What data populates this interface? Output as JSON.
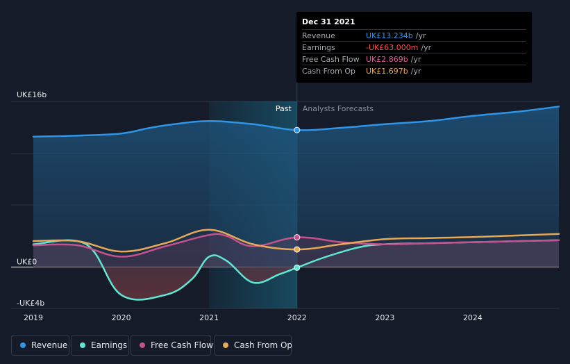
{
  "chart_data": {
    "type": "line",
    "title": "",
    "xlabel": "",
    "ylabel": "",
    "x_ticks": [
      "2019",
      "2020",
      "2021",
      "2022",
      "2023",
      "2024"
    ],
    "y_ticks": [
      "UK£16b",
      "UK£0",
      "-UK£4b"
    ],
    "ylim": [
      -4,
      16
    ],
    "xlim": [
      2019.0,
      2024.98
    ],
    "past_label": "Past",
    "forecast_label": "Analysts Forecasts",
    "highlight_x": 2022.0,
    "series": [
      {
        "name": "Revenue",
        "color": "#2f95e8",
        "fill": true,
        "x": [
          2019.0,
          2019.5,
          2020.0,
          2020.3,
          2020.6,
          2021.0,
          2021.5,
          2022.0,
          2022.5,
          2023.0,
          2023.5,
          2024.0,
          2024.5,
          2024.98
        ],
        "y": [
          12.6,
          12.7,
          12.9,
          13.4,
          13.8,
          14.1,
          13.8,
          13.234,
          13.45,
          13.8,
          14.1,
          14.6,
          15.0,
          15.5
        ]
      },
      {
        "name": "Earnings",
        "color": "#5ee8d3",
        "fill": true,
        "x": [
          2019.0,
          2019.6,
          2020.0,
          2020.5,
          2020.8,
          2021.0,
          2021.2,
          2021.5,
          2021.8,
          2022.0,
          2022.3,
          2022.7,
          2023.0,
          2023.5,
          2024.0,
          2024.5,
          2024.98
        ],
        "y": [
          2.2,
          2.2,
          -2.7,
          -2.7,
          -1.2,
          1.0,
          0.6,
          -1.5,
          -0.7,
          -0.063,
          0.9,
          1.9,
          2.2,
          2.3,
          2.4,
          2.5,
          2.6
        ]
      },
      {
        "name": "Free Cash Flow",
        "color": "#c7518c",
        "fill": true,
        "x": [
          2019.0,
          2019.5,
          2020.0,
          2020.5,
          2021.0,
          2021.2,
          2021.5,
          2022.0,
          2022.5,
          2023.0,
          2023.5,
          2024.0,
          2024.5,
          2024.98
        ],
        "y": [
          2.1,
          2.1,
          1.0,
          2.0,
          3.1,
          3.0,
          2.0,
          2.869,
          2.4,
          2.2,
          2.3,
          2.4,
          2.5,
          2.6
        ]
      },
      {
        "name": "Cash From Op",
        "color": "#e8a957",
        "fill": false,
        "x": [
          2019.0,
          2019.5,
          2020.0,
          2020.5,
          2021.0,
          2021.5,
          2022.0,
          2022.5,
          2023.0,
          2023.5,
          2024.0,
          2024.5,
          2024.98
        ],
        "y": [
          2.5,
          2.5,
          1.5,
          2.3,
          3.6,
          2.2,
          1.697,
          2.2,
          2.7,
          2.8,
          2.9,
          3.05,
          3.2
        ]
      }
    ]
  },
  "tooltip": {
    "date": "Dec 31 2021",
    "rows": [
      {
        "label": "Revenue",
        "value": "UK£13.234b",
        "unit": "/yr",
        "color": "#2f95e8"
      },
      {
        "label": "Earnings",
        "value": "-UK£63.000m",
        "unit": "/yr",
        "color": "#ff4d4d"
      },
      {
        "label": "Free Cash Flow",
        "value": "UK£2.869b",
        "unit": "/yr",
        "color": "#e05f9d"
      },
      {
        "label": "Cash From Op",
        "value": "UK£1.697b",
        "unit": "/yr",
        "color": "#e8a957"
      }
    ]
  },
  "legend": [
    {
      "label": "Revenue",
      "color": "#2f95e8"
    },
    {
      "label": "Earnings",
      "color": "#5ee8d3"
    },
    {
      "label": "Free Cash Flow",
      "color": "#c7518c"
    },
    {
      "label": "Cash From Op",
      "color": "#e8a957"
    }
  ]
}
